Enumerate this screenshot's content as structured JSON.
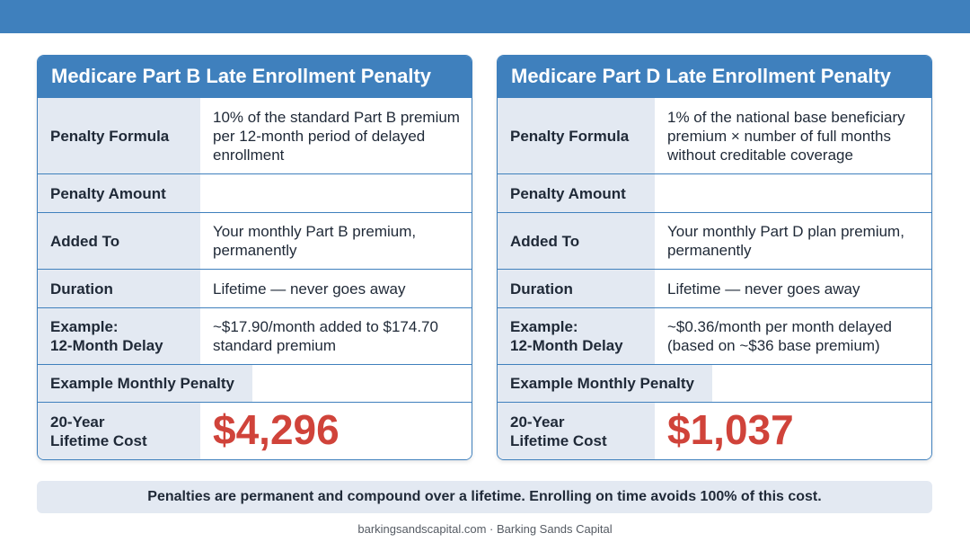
{
  "colors": {
    "header_blue": "#3f80bd",
    "label_bg": "#e3e9f2",
    "accent_red": "#d0433a"
  },
  "part_b": {
    "title": "Medicare Part B Late Enrollment Penalty",
    "rows": {
      "formula": {
        "label": "Penalty Formula",
        "value": "10% of the standard Part B premium per 12-month period of delayed enrollment"
      },
      "amount": {
        "label": "Penalty Amount",
        "value": ""
      },
      "added_to": {
        "label": "Added To",
        "value": "Your monthly Part B premium, permanently"
      },
      "duration": {
        "label": "Duration",
        "value": "Lifetime — never goes away"
      },
      "example": {
        "label": "Example:\n12-Month Delay",
        "value": "~$17.90/month added to $174.70 standard premium"
      },
      "monthly": {
        "label": "Example Monthly Penalty",
        "value": ""
      },
      "lifetime": {
        "label": "20-Year\nLifetime Cost",
        "value": "$4,296"
      }
    }
  },
  "part_d": {
    "title": "Medicare Part D Late Enrollment Penalty",
    "rows": {
      "formula": {
        "label": "Penalty Formula",
        "value": "1% of the national base beneficiary premium × number of full months without creditable coverage"
      },
      "amount": {
        "label": "Penalty Amount",
        "value": ""
      },
      "added_to": {
        "label": "Added To",
        "value": "Your monthly Part D plan premium, permanently"
      },
      "duration": {
        "label": "Duration",
        "value": "Lifetime — never goes away"
      },
      "example": {
        "label": "Example:\n12-Month Delay",
        "value": "~$0.36/month per month delayed (based on ~$36 base premium)"
      },
      "monthly": {
        "label": "Example Monthly Penalty",
        "value": ""
      },
      "lifetime": {
        "label": "20-Year\nLifetime Cost",
        "value": "$1,037"
      }
    }
  },
  "note": "Penalties are permanent and compound over a lifetime. Enrolling on time avoids 100% of this cost.",
  "footer": "barkingsandscapital.com · Barking Sands Capital"
}
